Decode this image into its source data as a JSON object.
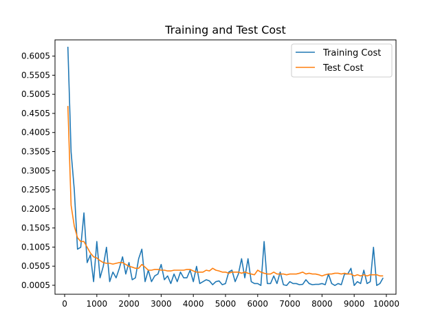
{
  "chart_data": {
    "type": "line",
    "title": "Training and Test Cost",
    "xlabel": "",
    "ylabel": "",
    "xlim": [
      -300,
      10300
    ],
    "ylim": [
      -0.023,
      0.643
    ],
    "xticks": [
      0,
      1000,
      2000,
      3000,
      4000,
      5000,
      6000,
      7000,
      8000,
      9000,
      10000
    ],
    "xtick_labels": [
      "0",
      "1000",
      "2000",
      "3000",
      "4000",
      "5000",
      "6000",
      "7000",
      "8000",
      "9000",
      "10000"
    ],
    "yticks": [
      0.0005,
      0.0505,
      0.1005,
      0.1505,
      0.2005,
      0.2505,
      0.3005,
      0.3505,
      0.4005,
      0.4505,
      0.5005,
      0.5505,
      0.6005
    ],
    "ytick_labels": [
      "0.0005",
      "0.0505",
      "0.1005",
      "0.1505",
      "0.2005",
      "0.2505",
      "0.3005",
      "0.3505",
      "0.4005",
      "0.4505",
      "0.5005",
      "0.5505",
      "0.6005"
    ],
    "grid": false,
    "legend_position": "top-right",
    "x": [
      100,
      200,
      300,
      400,
      500,
      600,
      700,
      800,
      900,
      1000,
      1100,
      1200,
      1300,
      1400,
      1500,
      1600,
      1700,
      1800,
      1900,
      2000,
      2100,
      2200,
      2300,
      2400,
      2500,
      2600,
      2700,
      2800,
      2900,
      3000,
      3100,
      3200,
      3300,
      3400,
      3500,
      3600,
      3700,
      3800,
      3900,
      4000,
      4100,
      4200,
      4300,
      4400,
      4500,
      4600,
      4700,
      4800,
      4900,
      5000,
      5100,
      5200,
      5300,
      5400,
      5500,
      5600,
      5700,
      5800,
      5900,
      6000,
      6100,
      6200,
      6300,
      6400,
      6500,
      6600,
      6700,
      6800,
      6900,
      7000,
      7100,
      7200,
      7300,
      7400,
      7500,
      7600,
      7700,
      7800,
      7900,
      8000,
      8100,
      8200,
      8300,
      8400,
      8500,
      8600,
      8700,
      8800,
      8900,
      9000,
      9100,
      9200,
      9300,
      9400,
      9500,
      9600,
      9700,
      9800,
      9900
    ],
    "series": [
      {
        "name": "Training Cost",
        "color": "#1f77b4",
        "values": [
          0.625,
          0.35,
          0.25,
          0.095,
          0.1,
          0.19,
          0.06,
          0.08,
          0.01,
          0.115,
          0.02,
          0.05,
          0.1,
          0.01,
          0.035,
          0.02,
          0.045,
          0.075,
          0.03,
          0.06,
          0.015,
          0.02,
          0.07,
          0.095,
          0.01,
          0.04,
          0.01,
          0.025,
          0.03,
          0.055,
          0.015,
          0.025,
          0.005,
          0.03,
          0.01,
          0.035,
          0.02,
          0.02,
          0.04,
          0.01,
          0.05,
          0.005,
          0.01,
          0.015,
          0.012,
          0.002,
          0.01,
          0.012,
          0.002,
          0.005,
          0.035,
          0.04,
          0.01,
          0.03,
          0.07,
          0.02,
          0.07,
          0.01,
          0.005,
          0.005,
          0.0,
          0.115,
          0.005,
          0.005,
          0.025,
          0.005,
          0.035,
          0.002,
          0.0,
          0.01,
          0.005,
          0.005,
          0.002,
          0.003,
          0.015,
          0.005,
          0.002,
          0.003,
          0.003,
          0.005,
          0.002,
          0.03,
          0.005,
          0.0,
          0.005,
          0.002,
          0.03,
          0.03,
          0.045,
          0.0,
          0.01,
          0.005,
          0.04,
          0.005,
          0.01,
          0.1,
          0.0,
          0.005,
          0.02
        ]
      },
      {
        "name": "Test Cost",
        "color": "#ff7f0e",
        "values": [
          0.47,
          0.21,
          0.155,
          0.125,
          0.115,
          0.115,
          0.1,
          0.085,
          0.075,
          0.072,
          0.065,
          0.06,
          0.058,
          0.058,
          0.056,
          0.058,
          0.06,
          0.06,
          0.055,
          0.05,
          0.048,
          0.045,
          0.045,
          0.055,
          0.048,
          0.04,
          0.04,
          0.042,
          0.042,
          0.04,
          0.04,
          0.038,
          0.038,
          0.04,
          0.04,
          0.04,
          0.04,
          0.042,
          0.042,
          0.038,
          0.035,
          0.035,
          0.035,
          0.04,
          0.038,
          0.045,
          0.04,
          0.038,
          0.035,
          0.035,
          0.032,
          0.035,
          0.035,
          0.035,
          0.032,
          0.035,
          0.032,
          0.03,
          0.028,
          0.04,
          0.035,
          0.032,
          0.03,
          0.03,
          0.035,
          0.03,
          0.03,
          0.03,
          0.028,
          0.03,
          0.03,
          0.03,
          0.032,
          0.035,
          0.03,
          0.032,
          0.03,
          0.03,
          0.028,
          0.025,
          0.028,
          0.03,
          0.03,
          0.032,
          0.032,
          0.03,
          0.032,
          0.03,
          0.03,
          0.025,
          0.028,
          0.025,
          0.028,
          0.025,
          0.028,
          0.028,
          0.028,
          0.025,
          0.025
        ]
      }
    ]
  }
}
